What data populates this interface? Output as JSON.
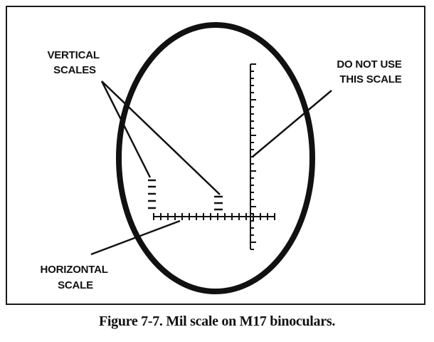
{
  "labels": {
    "vertical_scales_line1": "VERTICAL",
    "vertical_scales_line2": "SCALES",
    "do_not_use_line1": "DO NOT USE",
    "do_not_use_line2": "THIS SCALE",
    "horizontal_line1": "HORIZONTAL",
    "horizontal_line2": "SCALE"
  },
  "caption": "Figure 7-7. Mil scale on M17 binoculars."
}
